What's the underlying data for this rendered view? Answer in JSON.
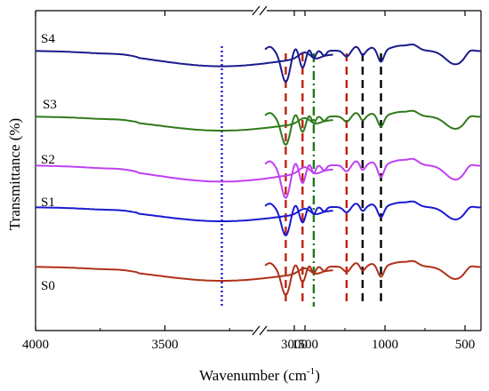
{
  "chart_data": {
    "type": "line",
    "xlabel": "Wavenumber (cm",
    "xlabel_sup": "-1",
    "xlabel_close": ")",
    "ylabel": "Transmittance (%)",
    "x_axis": "reversed, broken between 2850 and 1750",
    "x_ticks": [
      "4000",
      "3500",
      "3000",
      "1500",
      "1000",
      "500"
    ],
    "y_ticks": "none",
    "series": [
      {
        "name": "S4",
        "color": "#1a1a8c",
        "offset": 4,
        "label_x": 4000
      },
      {
        "name": "S3",
        "color": "#2f7a1a",
        "offset": 3,
        "label_x": 3950
      },
      {
        "name": "S2",
        "color": "#c040f0",
        "offset": 2,
        "label_x": 4000
      },
      {
        "name": "S1",
        "color": "#1a1ad0",
        "offset": 1,
        "label_x": 4000
      },
      {
        "name": "S0",
        "color": "#b03018",
        "offset": 0,
        "label_x": 4000
      }
    ],
    "reference_lines": [
      {
        "x": 3280,
        "color": "#1a1ad0",
        "style": "dotted"
      },
      {
        "x": 1620,
        "color": "#c02010",
        "style": "dashed"
      },
      {
        "x": 1515,
        "color": "#c02010",
        "style": "dashed"
      },
      {
        "x": 1445,
        "color": "#1a7a1a",
        "style": "dash-dot"
      },
      {
        "x": 1240,
        "color": "#c02010",
        "style": "dashed"
      },
      {
        "x": 1140,
        "color": "#000000",
        "style": "dashed"
      },
      {
        "x": 1025,
        "color": "#000000",
        "style": "dashed"
      }
    ],
    "grid": false,
    "legend": "none"
  }
}
